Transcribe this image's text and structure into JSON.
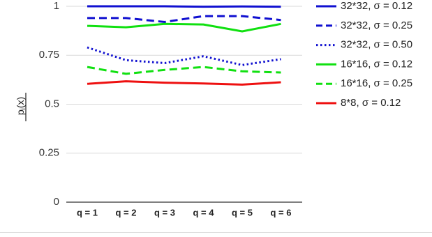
{
  "chart_data": {
    "type": "line",
    "title": "",
    "xlabel": "",
    "ylabel": "p",
    "ylabel_subscript": "i",
    "ylabel_argument": "(x)",
    "categories": [
      "q = 1",
      "q = 2",
      "q = 3",
      "q = 4",
      "q = 5",
      "q = 6"
    ],
    "ylim": [
      0,
      1
    ],
    "yticks": [
      0,
      0.25,
      0.5,
      0.75,
      1
    ],
    "ytick_labels": [
      "0",
      "0.25",
      "0.5",
      "0.75",
      "1"
    ],
    "grid": true,
    "legend_position": "right",
    "series": [
      {
        "name": "32*32,  σ = 0.12",
        "values": [
          1.0,
          1.0,
          1.0,
          0.998,
          0.999,
          0.998
        ],
        "color": "#1010d0",
        "dash": "solid"
      },
      {
        "name": "32*32, σ = 0.25",
        "values": [
          0.94,
          0.94,
          0.92,
          0.95,
          0.95,
          0.93
        ],
        "color": "#1010d0",
        "dash": "dashed"
      },
      {
        "name": "32*32, σ = 0.50",
        "values": [
          0.79,
          0.725,
          0.71,
          0.745,
          0.7,
          0.73
        ],
        "color": "#1010d0",
        "dash": "dotted"
      },
      {
        "name": "16*16,  σ = 0.12",
        "values": [
          0.9,
          0.893,
          0.91,
          0.907,
          0.872,
          0.91
        ],
        "color": "#10e010",
        "dash": "solid"
      },
      {
        "name": "16*16, σ = 0.25",
        "values": [
          0.69,
          0.655,
          0.675,
          0.69,
          0.668,
          0.662
        ],
        "color": "#10e010",
        "dash": "dashed"
      },
      {
        "name": "8*8,  σ = 0.12",
        "values": [
          0.604,
          0.617,
          0.61,
          0.606,
          0.6,
          0.612
        ],
        "color": "#ee1010",
        "dash": "solid"
      }
    ]
  }
}
